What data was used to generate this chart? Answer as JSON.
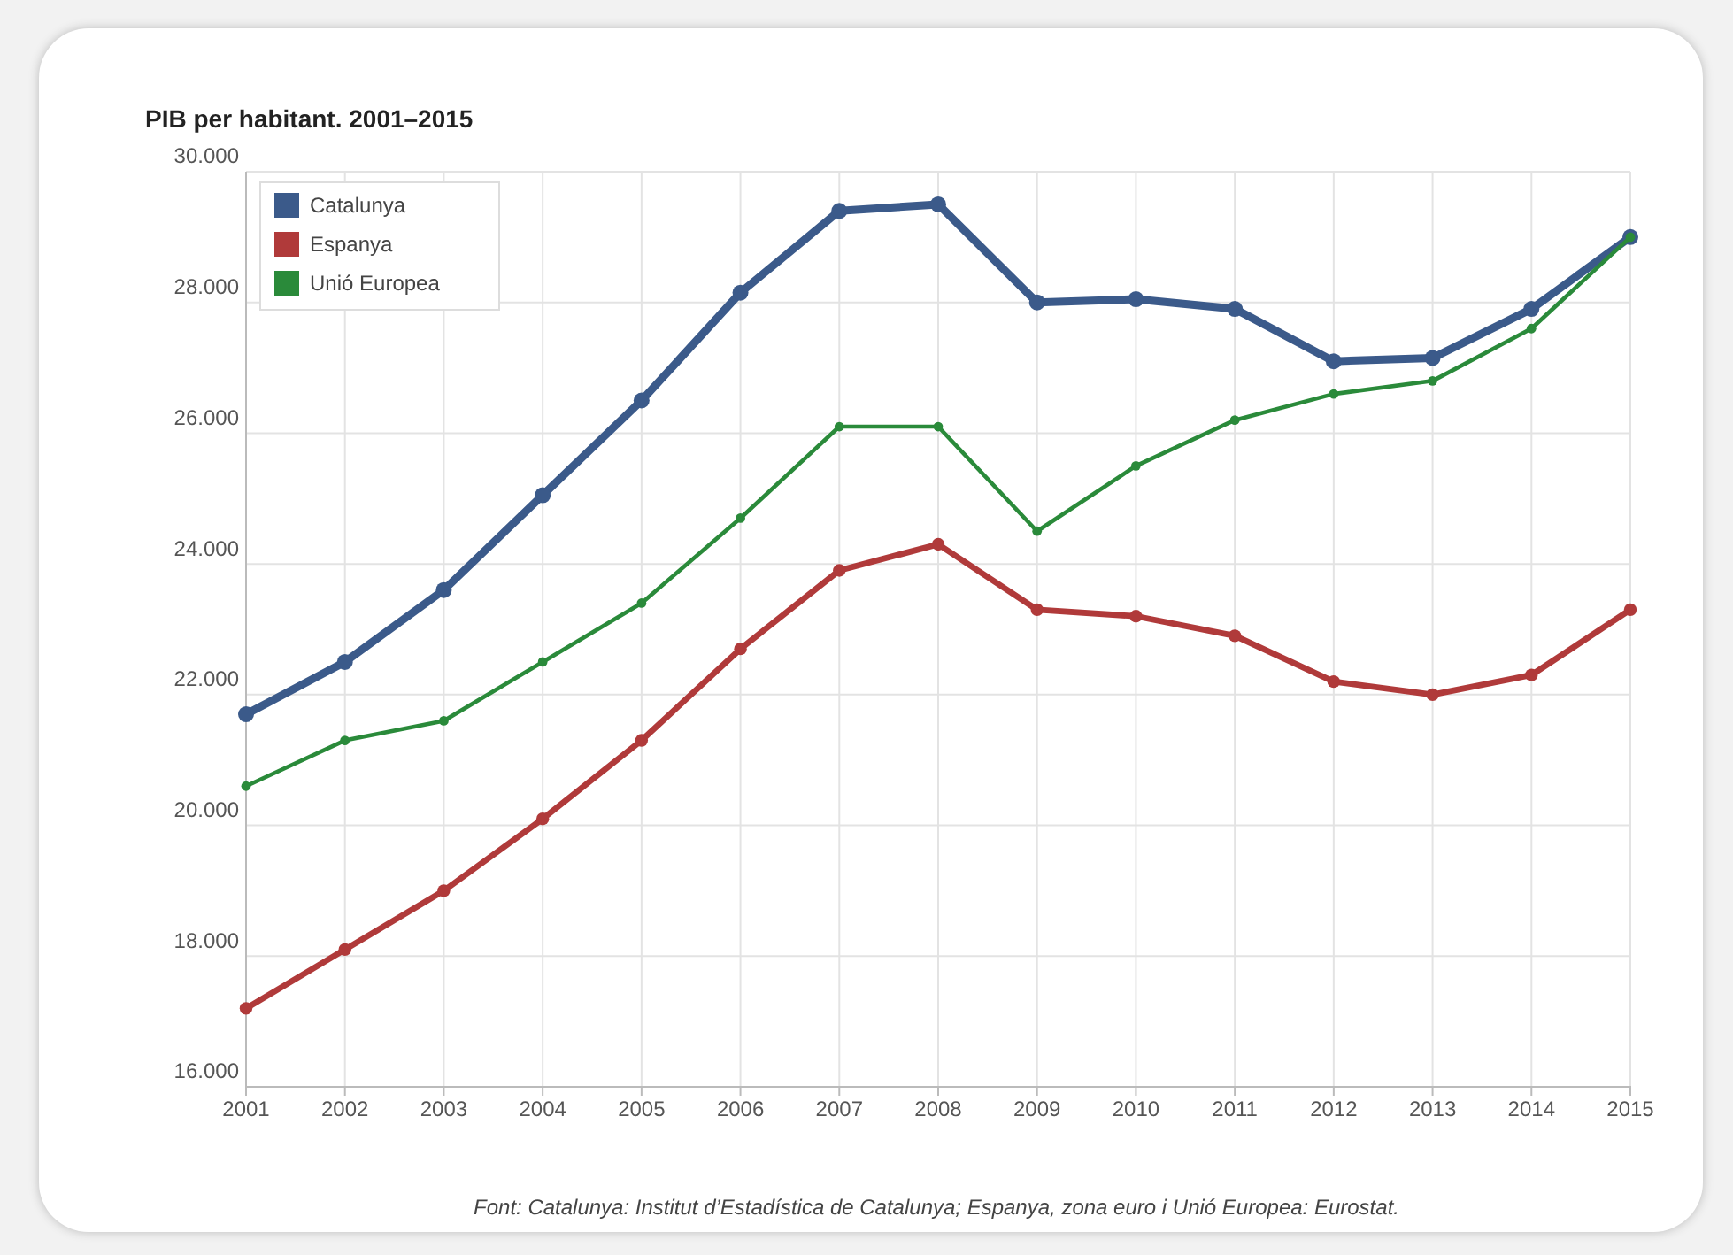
{
  "chart_data": {
    "type": "line",
    "title": "PIB per habitant. 2001–2015",
    "categories": [
      "2001",
      "2002",
      "2003",
      "2004",
      "2005",
      "2006",
      "2007",
      "2008",
      "2009",
      "2010",
      "2011",
      "2012",
      "2013",
      "2014",
      "2015"
    ],
    "series": [
      {
        "name": "Catalunya",
        "color": "#3b5a8a",
        "values": [
          21700,
          22500,
          23600,
          25050,
          26500,
          28150,
          29400,
          29500,
          28000,
          28050,
          27900,
          27100,
          27150,
          27900,
          29000
        ]
      },
      {
        "name": "Espanya",
        "color": "#b03a3a",
        "values": [
          17200,
          18100,
          19000,
          20100,
          21300,
          22700,
          23900,
          24300,
          23300,
          23200,
          22900,
          22200,
          22000,
          22300,
          23300
        ]
      },
      {
        "name": "Unió Europea",
        "color": "#2a8a3a",
        "values": [
          20600,
          21300,
          21600,
          22500,
          23400,
          24700,
          26100,
          26100,
          24500,
          25500,
          26200,
          26600,
          26800,
          27600,
          29000
        ]
      }
    ],
    "ylim": [
      16000,
      30000
    ],
    "yticks": [
      {
        "value": 16000,
        "label": "16.000"
      },
      {
        "value": 18000,
        "label": "18.000"
      },
      {
        "value": 20000,
        "label": "20.000"
      },
      {
        "value": 22000,
        "label": "22.000"
      },
      {
        "value": 24000,
        "label": "24.000"
      },
      {
        "value": 26000,
        "label": "26.000"
      },
      {
        "value": 28000,
        "label": "28.000"
      },
      {
        "value": 30000,
        "label": "30.000"
      }
    ],
    "grid": true,
    "legend": "top left",
    "marker": "circle",
    "line_style": "solid",
    "annotations": [
      "Font: Catalunya: Institut d’Estadística de Catalunya; Espanya, zona euro i Unió Europea: Eurostat."
    ]
  }
}
